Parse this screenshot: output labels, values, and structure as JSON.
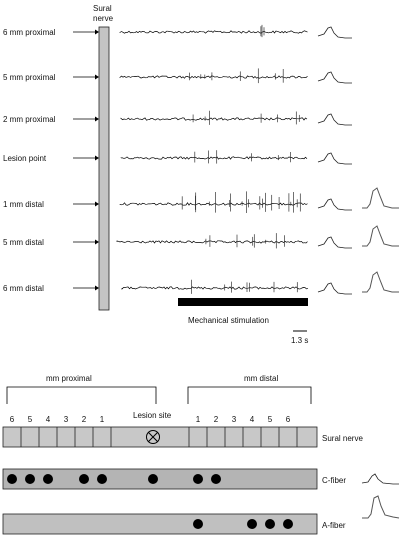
{
  "recording": {
    "nerve_title_line1": "Sural",
    "nerve_title_line2": "nerve",
    "rows": [
      {
        "label": "6 mm proximal",
        "activity": 0.15,
        "a_wave": false
      },
      {
        "label": "5 mm proximal",
        "activity": 0.35,
        "a_wave": false
      },
      {
        "label": "2 mm proximal",
        "activity": 0.3,
        "a_wave": false
      },
      {
        "label": "Lesion point",
        "activity": 0.25,
        "a_wave": false
      },
      {
        "label": "1 mm distal",
        "activity": 0.9,
        "a_wave": true
      },
      {
        "label": "5 mm distal",
        "activity": 0.35,
        "a_wave": true
      },
      {
        "label": "6 mm distal",
        "activity": 0.3,
        "a_wave": true
      }
    ],
    "stimulation_label": "Mechanical stimulation",
    "scale_label": "1.3 s"
  },
  "schematic": {
    "proximal_label": "mm proximal",
    "distal_label": "mm distal",
    "lesion_label": "Lesion site",
    "proximal_numbers": [
      "6",
      "5",
      "4",
      "3",
      "2",
      "1"
    ],
    "distal_numbers": [
      "1",
      "2",
      "3",
      "4",
      "5",
      "6"
    ],
    "nerve_label": "Sural nerve",
    "c_fiber_label": "C-fiber",
    "a_fiber_label": "A-fiber",
    "c_fiber_dots": [
      "6",
      "5",
      "4",
      "2",
      "1",
      "lesion",
      "d1",
      "d2"
    ],
    "a_fiber_dots": [
      "d1",
      "d4",
      "d5",
      "d6"
    ],
    "colors": {
      "nerve": "#c8c8c8",
      "fiber_box": "#b4b4b4",
      "dot": "#000000",
      "trace": "#000000"
    }
  }
}
